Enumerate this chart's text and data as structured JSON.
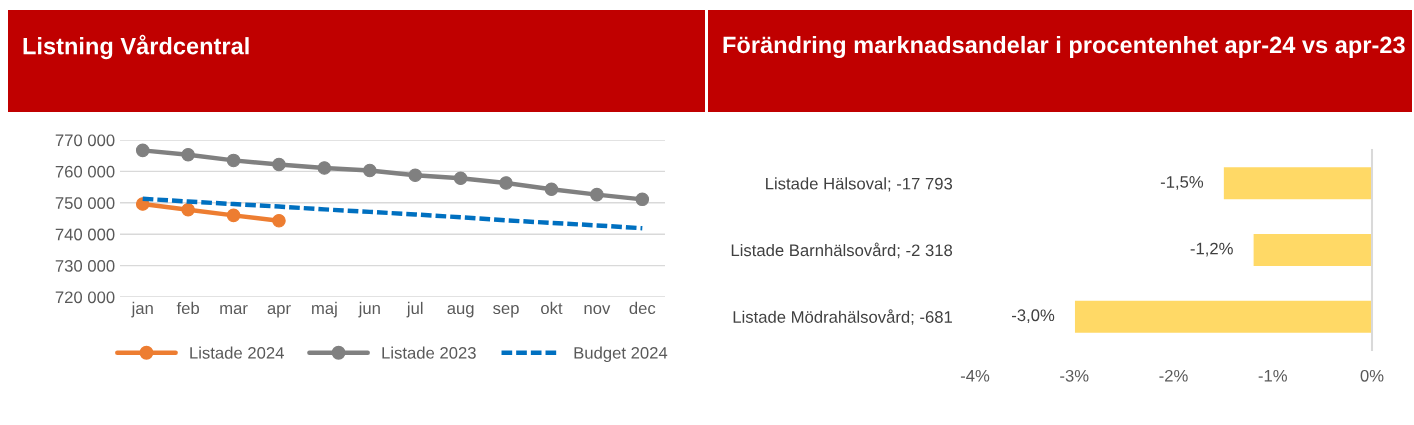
{
  "chart_data": [
    {
      "type": "line",
      "title": "Listning Vårdcentral",
      "categories": [
        "jan",
        "feb",
        "mar",
        "apr",
        "maj",
        "jun",
        "jul",
        "aug",
        "sep",
        "okt",
        "nov",
        "dec"
      ],
      "series": [
        {
          "name": "Listade 2024",
          "color": "#ed7d31",
          "marker": "circle",
          "line_style": "solid",
          "values": [
            749600,
            747800,
            746000,
            744300,
            null,
            null,
            null,
            null,
            null,
            null,
            null,
            null
          ]
        },
        {
          "name": "Listade 2023",
          "color": "#808080",
          "marker": "circle",
          "line_style": "solid",
          "values": [
            766700,
            765300,
            763500,
            762200,
            761100,
            760300,
            758800,
            757800,
            756300,
            754300,
            752600,
            751100
          ]
        },
        {
          "name": "Budget 2024",
          "color": "#0070c0",
          "marker": "none",
          "line_style": "dashed",
          "values": [
            751300,
            750400,
            749600,
            748800,
            747900,
            747100,
            746300,
            745400,
            744400,
            743600,
            742800,
            741900
          ]
        }
      ],
      "ylim": [
        720000,
        770000
      ],
      "yticks": [
        {
          "value": 720000,
          "label": "720 000"
        },
        {
          "value": 730000,
          "label": "730 000"
        },
        {
          "value": 740000,
          "label": "740 000"
        },
        {
          "value": 750000,
          "label": "750 000"
        },
        {
          "value": 760000,
          "label": "760 000"
        },
        {
          "value": 770000,
          "label": "770 000"
        }
      ],
      "grid": "y",
      "legend": "bottom"
    },
    {
      "type": "bar",
      "orientation": "horizontal",
      "title": "Förändring marknadsandelar i procentenhet apr-24 vs apr-23",
      "categories": [
        "Listade Hälsoval; -17 793",
        "Listade Barnhälsovård; -2 318",
        "Listade Mödrahälsovård; -681"
      ],
      "values": [
        -1.5,
        -1.2,
        -3.0
      ],
      "color": "#ffd966",
      "value_labels": [
        "-1,5%",
        "-1,2%",
        "-3,0%"
      ],
      "xlim": [
        -4,
        0
      ],
      "xticks": [
        {
          "value": -4,
          "label": "-4%"
        },
        {
          "value": -3,
          "label": "-3%"
        },
        {
          "value": -2,
          "label": "-2%"
        },
        {
          "value": -1,
          "label": "-1%"
        },
        {
          "value": 0,
          "label": "0%"
        }
      ]
    }
  ]
}
